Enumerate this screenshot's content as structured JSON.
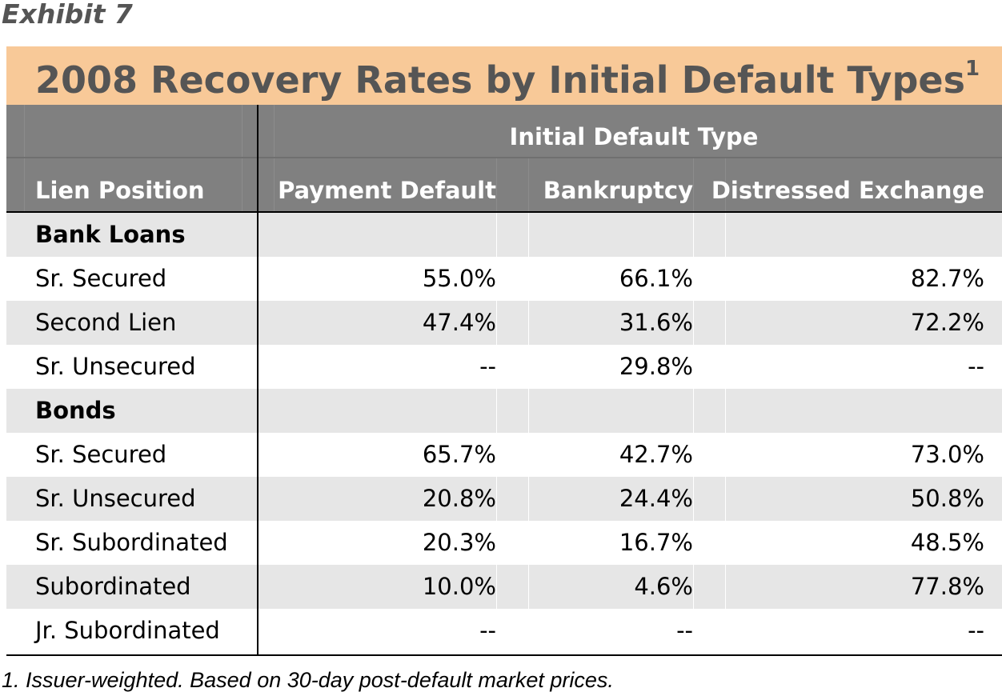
{
  "exhibit_label": "Exhibit 7",
  "title": "2008 Recovery Rates by Initial Default Types",
  "title_footnote_marker": "1",
  "header": {
    "group_label": "Initial Default Type",
    "lien_position": "Lien Position",
    "columns": [
      "Payment Default",
      "Bankruptcy",
      "Distressed Exchange"
    ]
  },
  "rows": [
    {
      "label": "Bank Loans",
      "section": true,
      "values": [
        "",
        "",
        ""
      ]
    },
    {
      "label": "Sr. Secured",
      "section": false,
      "values": [
        "55.0%",
        "66.1%",
        "82.7%"
      ]
    },
    {
      "label": "Second Lien",
      "section": false,
      "values": [
        "47.4%",
        "31.6%",
        "72.2%"
      ]
    },
    {
      "label": "Sr. Unsecured",
      "section": false,
      "values": [
        "--",
        "29.8%",
        "--"
      ]
    },
    {
      "label": "Bonds",
      "section": true,
      "values": [
        "",
        "",
        ""
      ]
    },
    {
      "label": "Sr. Secured",
      "section": false,
      "values": [
        "65.7%",
        "42.7%",
        "73.0%"
      ]
    },
    {
      "label": "Sr. Unsecured",
      "section": false,
      "values": [
        "20.8%",
        "24.4%",
        "50.8%"
      ]
    },
    {
      "label": "Sr. Subordinated",
      "section": false,
      "values": [
        "20.3%",
        "16.7%",
        "48.5%"
      ]
    },
    {
      "label": "Subordinated",
      "section": false,
      "values": [
        "10.0%",
        "4.6%",
        "77.8%"
      ]
    },
    {
      "label": "Jr. Subordinated",
      "section": false,
      "values": [
        "--",
        "--",
        "--"
      ]
    }
  ],
  "footnote": "1. Issuer-weighted. Based on 30-day post-default market prices.",
  "colors": {
    "title_band": "#f8c998",
    "title_text": "#555555",
    "header_band": "#808080",
    "shaded_row": "#e6e6e6"
  }
}
